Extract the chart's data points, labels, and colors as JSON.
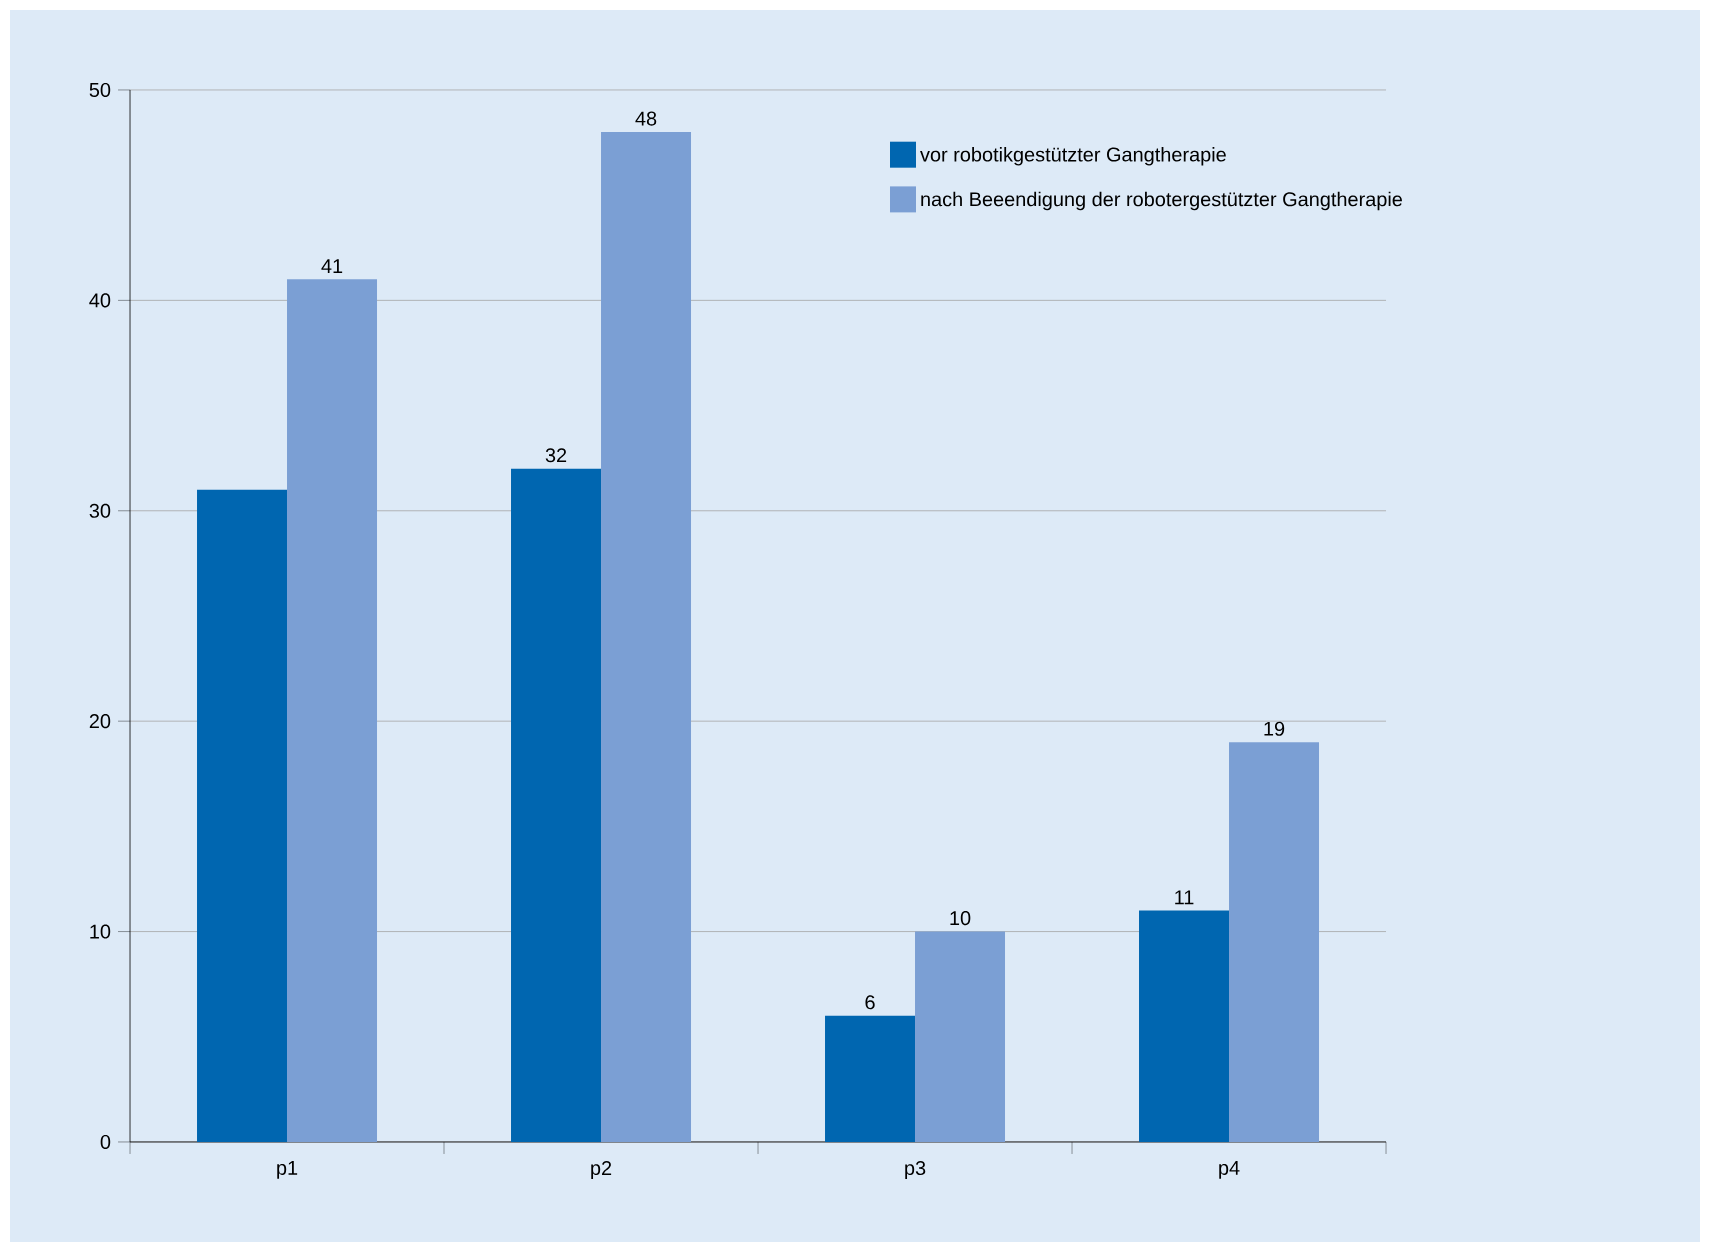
{
  "chart_data": {
    "type": "bar",
    "categories": [
      "p1",
      "p2",
      "p3",
      "p4"
    ],
    "series": [
      {
        "name": "vor robotikgestützter Gangtherapie",
        "color": "#0066b0",
        "values": [
          31,
          32,
          6,
          11
        ],
        "value_labels": [
          null,
          "32",
          "6",
          "11"
        ]
      },
      {
        "name": "nach Beeendigung der robotergestützter Gangtherapie",
        "color": "#7b9fd4",
        "values": [
          41,
          48,
          10,
          19
        ],
        "value_labels": [
          "41",
          "48",
          "10",
          "19"
        ]
      }
    ],
    "ylim": [
      0,
      50
    ],
    "yticks": [
      0,
      10,
      20,
      30,
      40,
      50
    ],
    "grid": "y",
    "legend": "top right"
  }
}
